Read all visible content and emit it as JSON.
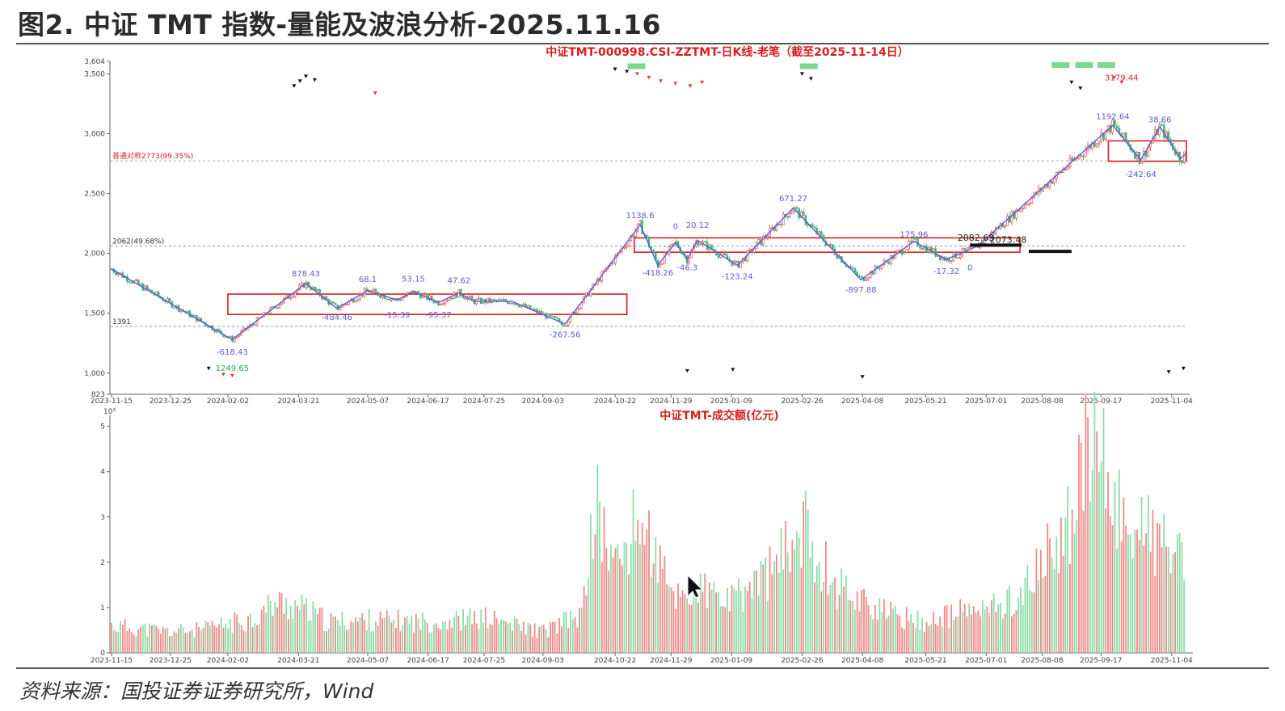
{
  "figure": {
    "title": "图2. 中证 TMT 指数-量能及波浪分析-2025.11.16",
    "source": "资料来源：国投证券证券研究所，Wind"
  },
  "colors": {
    "up": "#e84040",
    "down": "#3cb878",
    "wave": "#5b5bd6",
    "box": "#d81e1e",
    "dashed": "#8a8ad8",
    "vol_up": "#f08a8a",
    "vol_down": "#8fdca8"
  },
  "chart_data": [
    {
      "type": "line",
      "title": "中证TMT-000998.CSI-ZZTMT-日K线-老笔（截至2025-11-14日）",
      "xlabel": "",
      "ylabel": "",
      "x_ticks": [
        "2023-11-15",
        "2023-12-25",
        "2024-02-02",
        "2024-03-21",
        "2024-05-07",
        "2024-06-17",
        "2024-07-25",
        "2024-09-03",
        "2024-10-22",
        "2024-11-29",
        "2025-01-09",
        "2025-02-26",
        "2025-04-08",
        "2025-05-21",
        "2025-07-01",
        "2025-08-08",
        "2025-09-17",
        "2025-11-04"
      ],
      "y_ticks": [
        "3,604",
        "3,500",
        "3,000",
        "2,500",
        "2,000",
        "1,500",
        "1,000",
        "823"
      ],
      "ylim": [
        823,
        3604
      ],
      "grid": false,
      "series": [
        {
          "x": [
            "2023-11-15",
            "2024-02-05",
            "2024-03-26",
            "2024-04-16",
            "2024-05-07",
            "2024-05-27",
            "2024-06-07",
            "2024-06-24",
            "2024-07-08",
            "2024-07-18",
            "2024-08-13",
            "2024-09-18",
            "2024-11-08",
            "2024-11-20",
            "2024-12-02",
            "2024-12-10",
            "2024-12-17",
            "2025-01-13",
            "2025-02-20",
            "2025-04-07",
            "2025-05-13",
            "2025-06-04",
            "2025-06-25",
            "2025-09-25",
            "2025-10-14",
            "2025-10-27",
            "2025-11-10",
            "2025-11-14"
          ],
          "values": [
            1870,
            1280,
            1750,
            1540,
            1690,
            1610,
            1680,
            1590,
            1670,
            1600,
            1600,
            1410,
            2240,
            1900,
            2090,
            1950,
            2110,
            1900,
            2380,
            1780,
            2100,
            1950,
            2060,
            3070,
            2780,
            3060,
            2790,
            2840
          ]
        }
      ],
      "reference_lines": [
        {
          "label": "2062(49.68%)",
          "value": 2062
        },
        {
          "label": "1391",
          "value": 1391
        },
        {
          "label": "普通对称2773(99.35%)",
          "value": 2773
        }
      ],
      "boxes": [
        {
          "x_start": "2024-02-02",
          "x_end": "2024-10-30",
          "y_low": 1490,
          "y_high": 1660
        },
        {
          "x_start": "2024-11-04",
          "x_end": "2025-07-24",
          "y_low": 2010,
          "y_high": 2130
        },
        {
          "x_start": "2025-09-22",
          "x_end": "2025-11-14",
          "y_low": 2770,
          "y_high": 2940
        }
      ],
      "annotations": [
        {
          "text": "-618.43",
          "x": "2024-02-05",
          "y": 1155
        },
        {
          "text": "1249.65",
          "x": "2024-02-05",
          "y": 1020
        },
        {
          "text": "878.43",
          "x": "2024-03-26",
          "y": 1810
        },
        {
          "text": "-484.46",
          "x": "2024-04-16",
          "y": 1445
        },
        {
          "text": "68.1",
          "x": "2024-05-07",
          "y": 1760
        },
        {
          "text": "-15.39",
          "x": "2024-05-27",
          "y": 1465
        },
        {
          "text": "53.15",
          "x": "2024-06-07",
          "y": 1765
        },
        {
          "text": "-95.37",
          "x": "2024-06-24",
          "y": 1465
        },
        {
          "text": "47.62",
          "x": "2024-07-08",
          "y": 1750
        },
        {
          "text": "-267.56",
          "x": "2024-09-18",
          "y": 1300
        },
        {
          "text": "1138.6",
          "x": "2024-11-08",
          "y": 2295
        },
        {
          "text": "-418.26",
          "x": "2024-11-20",
          "y": 1815
        },
        {
          "text": "0",
          "x": "2024-12-02",
          "y": 2205
        },
        {
          "text": "-46.3",
          "x": "2024-12-10",
          "y": 1860
        },
        {
          "text": "20.12",
          "x": "2024-12-17",
          "y": 2215
        },
        {
          "text": "-123.24",
          "x": "2025-01-13",
          "y": 1785
        },
        {
          "text": "671.27",
          "x": "2025-02-20",
          "y": 2435
        },
        {
          "text": "-897.88",
          "x": "2025-04-07",
          "y": 1675
        },
        {
          "text": "175.96",
          "x": "2025-05-13",
          "y": 2135
        },
        {
          "text": "-17.32",
          "x": "2025-06-04",
          "y": 1830
        },
        {
          "text": "0",
          "x": "2025-06-20",
          "y": 1860
        },
        {
          "text": "2082.69",
          "x": "2025-06-24",
          "y": 2105
        },
        {
          "text": "2073.48",
          "x": "2025-07-16",
          "y": 2090
        },
        {
          "text": "1192.64",
          "x": "2025-09-25",
          "y": 3120
        },
        {
          "text": "38.66",
          "x": "2025-10-27",
          "y": 3095
        },
        {
          "text": "-242.64",
          "x": "2025-10-14",
          "y": 2640
        },
        {
          "text": "3179.44",
          "x": "2025-10-01",
          "y": 3445
        }
      ]
    },
    {
      "type": "bar",
      "title": "中证TMT-成交额(亿元)",
      "multiplier": "10³",
      "y_ticks": [
        "5",
        "4",
        "3",
        "2",
        "1",
        "0"
      ],
      "ylim": [
        0,
        5.1
      ],
      "x_ticks": [
        "2023-11-15",
        "2023-12-25",
        "2024-02-02",
        "2024-03-21",
        "2024-05-07",
        "2024-06-17",
        "2024-07-25",
        "2024-09-03",
        "2024-10-22",
        "2024-11-29",
        "2025-01-09",
        "2025-02-26",
        "2025-04-08",
        "2025-05-21",
        "2025-07-01",
        "2025-08-08",
        "2025-09-17",
        "2025-11-04"
      ],
      "series": [
        {
          "x": [
            "2023-11-15",
            "2023-12-25",
            "2024-01-15",
            "2024-02-02",
            "2024-02-20",
            "2024-03-05",
            "2024-03-21",
            "2024-04-10",
            "2024-05-07",
            "2024-06-17",
            "2024-07-25",
            "2024-09-03",
            "2024-09-30",
            "2024-10-08",
            "2024-10-22",
            "2024-11-08",
            "2024-11-29",
            "2024-12-20",
            "2025-01-09",
            "2025-02-10",
            "2025-02-26",
            "2025-03-20",
            "2025-04-08",
            "2025-04-25",
            "2025-05-21",
            "2025-06-20",
            "2025-07-01",
            "2025-07-25",
            "2025-08-08",
            "2025-08-25",
            "2025-09-03",
            "2025-09-17",
            "2025-09-25",
            "2025-10-15",
            "2025-11-04",
            "2025-11-14"
          ],
          "values": [
            0.7,
            0.55,
            0.6,
            0.75,
            0.9,
            1.3,
            1.2,
            0.8,
            0.85,
            0.8,
            0.9,
            0.55,
            1.0,
            3.9,
            2.2,
            3.5,
            1.5,
            1.6,
            1.3,
            2.3,
            3.3,
            1.8,
            1.4,
            1.0,
            0.8,
            1.1,
            1.1,
            1.5,
            2.3,
            3.2,
            4.9,
            5.1,
            3.8,
            3.2,
            2.7,
            2.0
          ]
        }
      ]
    }
  ]
}
